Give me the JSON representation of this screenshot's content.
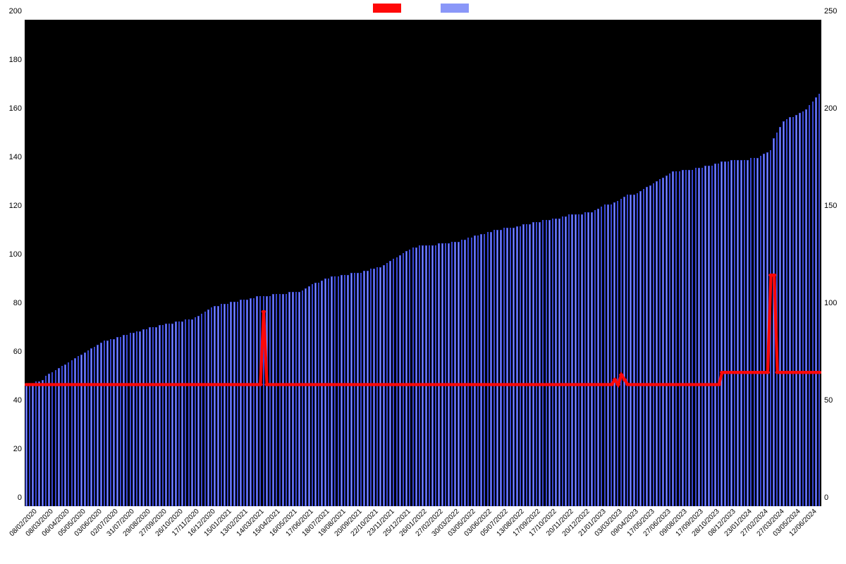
{
  "chart": {
    "type": "combo-bar-line",
    "background_color": "#000000",
    "page_background": "#ffffff",
    "legend": {
      "series1": {
        "label": " ",
        "color": "#ff0808"
      },
      "series2": {
        "label": " ",
        "color": "#8a97f8"
      }
    },
    "y_left": {
      "min": 0,
      "max": 200,
      "step": 20,
      "color": "#000000",
      "fontsize": 11
    },
    "y_right": {
      "min": 0,
      "max": 250,
      "step": 50,
      "color": "#000000",
      "fontsize": 11
    },
    "x_labels": [
      "08/02/2020",
      "08/03/2020",
      "06/04/2020",
      "05/05/2020",
      "03/06/2020",
      "02/07/2020",
      "31/07/2020",
      "29/08/2020",
      "27/09/2020",
      "26/10/2020",
      "17/11/2020",
      "16/12/2020",
      "15/01/2021",
      "13/02/2021",
      "14/03/2021",
      "15/04/2021",
      "16/05/2021",
      "17/06/2021",
      "18/07/2021",
      "19/08/2021",
      "20/09/2021",
      "22/10/2021",
      "23/11/2021",
      "25/12/2021",
      "26/01/2022",
      "27/02/2022",
      "30/03/2022",
      "03/05/2022",
      "03/06/2022",
      "05/07/2022",
      "13/08/2022",
      "17/09/2022",
      "17/10/2022",
      "20/11/2022",
      "20/12/2022",
      "21/01/2023",
      "03/03/2023",
      "09/04/2023",
      "17/05/2023",
      "27/06/2023",
      "09/08/2023",
      "17/09/2023",
      "28/10/2023",
      "08/12/2023",
      "23/01/2024",
      "27/02/2024",
      "27/03/2024",
      "03/05/2024",
      "12/06/2024"
    ],
    "x_label_fontsize": 10,
    "x_label_rotation": -45,
    "bars_per_label": 5,
    "bar_color_fill": "#8a97f8",
    "bar_color_stroke": "#3947d3",
    "bar_values_right_scale": [
      62,
      63,
      63,
      64,
      64,
      65,
      67,
      68,
      69,
      70,
      71,
      72,
      73,
      74,
      75,
      76,
      77,
      78,
      79,
      80,
      81,
      82,
      83,
      84,
      85,
      85,
      86,
      86,
      87,
      87,
      88,
      88,
      89,
      89,
      90,
      90,
      91,
      91,
      92,
      92,
      92,
      93,
      93,
      94,
      94,
      94,
      95,
      95,
      95,
      96,
      96,
      96,
      97,
      98,
      99,
      100,
      101,
      102,
      103,
      103,
      104,
      104,
      104,
      105,
      105,
      105,
      106,
      106,
      106,
      107,
      107,
      108,
      108,
      108,
      108,
      108,
      109,
      109,
      109,
      109,
      109,
      110,
      110,
      110,
      110,
      111,
      112,
      113,
      114,
      115,
      115,
      116,
      117,
      117,
      118,
      118,
      118,
      119,
      119,
      119,
      120,
      120,
      120,
      120,
      121,
      121,
      122,
      122,
      123,
      123,
      124,
      125,
      126,
      127,
      128,
      129,
      130,
      131,
      132,
      133,
      133,
      134,
      134,
      134,
      134,
      134,
      134,
      135,
      135,
      135,
      135,
      136,
      136,
      136,
      137,
      137,
      138,
      138,
      139,
      139,
      140,
      140,
      141,
      141,
      142,
      142,
      142,
      143,
      143,
      143,
      143,
      144,
      144,
      145,
      145,
      145,
      146,
      146,
      146,
      147,
      147,
      147,
      148,
      148,
      148,
      149,
      149,
      150,
      150,
      150,
      150,
      150,
      151,
      151,
      151,
      152,
      153,
      154,
      155,
      155,
      155,
      156,
      157,
      158,
      159,
      160,
      160,
      160,
      161,
      162,
      163,
      164,
      165,
      166,
      167,
      168,
      169,
      170,
      171,
      172,
      172,
      172,
      173,
      173,
      173,
      173,
      174,
      174,
      174,
      175,
      175,
      175,
      176,
      176,
      177,
      177,
      177,
      178,
      178,
      178,
      178,
      178,
      178,
      179,
      179,
      179,
      180,
      181,
      182,
      183,
      189,
      192,
      195,
      198,
      199,
      200,
      200,
      201,
      202,
      203,
      204,
      206,
      208,
      210,
      212
    ],
    "line_color": "#ff0808",
    "line_width": 3,
    "line_marker_radius": 2,
    "line_values_left_scale": [
      50,
      50,
      50,
      50,
      50,
      50,
      50,
      50,
      50,
      50,
      50,
      50,
      50,
      50,
      50,
      50,
      50,
      50,
      50,
      50,
      50,
      50,
      50,
      50,
      50,
      50,
      50,
      50,
      50,
      50,
      50,
      50,
      50,
      50,
      50,
      50,
      50,
      50,
      50,
      50,
      50,
      50,
      50,
      50,
      50,
      50,
      50,
      50,
      50,
      50,
      50,
      50,
      50,
      50,
      50,
      50,
      50,
      50,
      50,
      50,
      50,
      50,
      50,
      50,
      50,
      50,
      50,
      50,
      50,
      50,
      50,
      50,
      50,
      80,
      50,
      50,
      50,
      50,
      50,
      50,
      50,
      50,
      50,
      50,
      50,
      50,
      50,
      50,
      50,
      50,
      50,
      50,
      50,
      50,
      50,
      50,
      50,
      50,
      50,
      50,
      50,
      50,
      50,
      50,
      50,
      50,
      50,
      50,
      50,
      50,
      50,
      50,
      50,
      50,
      50,
      50,
      50,
      50,
      50,
      50,
      50,
      50,
      50,
      50,
      50,
      50,
      50,
      50,
      50,
      50,
      50,
      50,
      50,
      50,
      50,
      50,
      50,
      50,
      50,
      50,
      50,
      50,
      50,
      50,
      50,
      50,
      50,
      50,
      50,
      50,
      50,
      50,
      50,
      50,
      50,
      50,
      50,
      50,
      50,
      50,
      50,
      50,
      50,
      50,
      50,
      50,
      50,
      50,
      50,
      50,
      50,
      50,
      50,
      50,
      50,
      50,
      50,
      50,
      50,
      50,
      50,
      52,
      50,
      54,
      52,
      50,
      50,
      50,
      50,
      50,
      50,
      50,
      50,
      50,
      50,
      50,
      50,
      50,
      50,
      50,
      50,
      50,
      50,
      50,
      50,
      50,
      50,
      50,
      50,
      50,
      50,
      50,
      50,
      50,
      55,
      55,
      55,
      55,
      55,
      55,
      55,
      55,
      55,
      55,
      55,
      55,
      55,
      55,
      55,
      95,
      95,
      55,
      55,
      55,
      55,
      55,
      55,
      55,
      55,
      55,
      55,
      55,
      55,
      55,
      55
    ]
  }
}
